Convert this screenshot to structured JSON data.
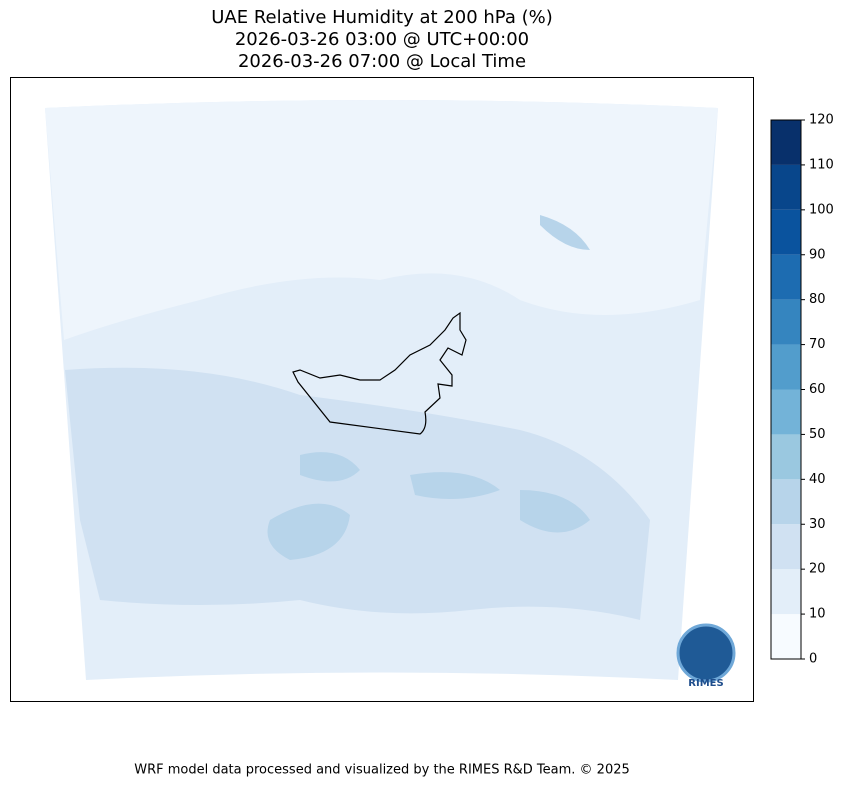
{
  "title": [
    "UAE Relative Humidity at 200 hPa (%)",
    "2026-03-26 03:00 @ UTC+00:00",
    "2026-03-26 07:00 @ Local Time"
  ],
  "colorbar": {
    "levels": [
      0,
      10,
      20,
      30,
      40,
      50,
      60,
      70,
      80,
      90,
      100,
      110,
      120
    ],
    "colors": [
      "#f7fbff",
      "#e3eef9",
      "#d0e1f2",
      "#b7d4ea",
      "#9ac8e0",
      "#73b3d8",
      "#529dcc",
      "#3585bf",
      "#1d6cb1",
      "#0a539e",
      "#08468b",
      "#08306b"
    ]
  },
  "logo": "RIMES",
  "footer": "WRF model data processed and visualized by the RIMES R&D Team. © 2025"
}
